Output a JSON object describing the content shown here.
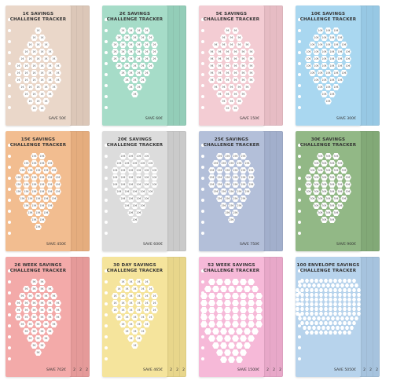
{
  "trackers": [
    {
      "title": "1€ SAVINGS",
      "subtitle": "CHALLENGE TRACKER",
      "unit": "1€",
      "save": "SAVE 50€",
      "color": "#ead7c9",
      "shade": "#dcc7b8",
      "rows": [
        1,
        2,
        3,
        4,
        5,
        6,
        6,
        6,
        5,
        4,
        3,
        2
      ],
      "tab": ""
    },
    {
      "title": "2€ SAVINGS",
      "subtitle": "CHALLENGE TRACKER",
      "unit": "2€",
      "save": "SAVE 60€",
      "color": "#a6dcc8",
      "shade": "#93cdb8",
      "rows": [
        4,
        5,
        6,
        6,
        6,
        5,
        4,
        3,
        2,
        1
      ],
      "tab": ""
    },
    {
      "title": "5€ SAVINGS",
      "subtitle": "CHALLENGE TRACKER",
      "unit": "5€",
      "save": "SAVE 150€",
      "color": "#f3ccd3",
      "shade": "#e6bcc4",
      "rows": [
        2,
        3,
        5,
        6,
        6,
        6,
        6,
        6,
        5,
        4,
        3,
        2
      ],
      "tab": ""
    },
    {
      "title": "10€ SAVINGS",
      "subtitle": "CHALLENGE TRACKER",
      "unit": "10€",
      "save": "SAVE 300€",
      "color": "#a9d7f0",
      "shade": "#97c8e4",
      "rows": [
        3,
        4,
        5,
        6,
        6,
        6,
        5,
        4,
        3,
        2,
        1
      ],
      "tab": ""
    },
    {
      "title": "15€ SAVINGS",
      "subtitle": "CHALLENGE TRACKER",
      "unit": "15€",
      "save": "SAVE 450€",
      "color": "#f2bd90",
      "shade": "#e5ad7e",
      "rows": [
        2,
        4,
        5,
        6,
        6,
        6,
        5,
        4,
        3,
        2,
        1
      ],
      "tab": ""
    },
    {
      "title": "20€ SAVINGS",
      "subtitle": "CHALLENGE TRACKER",
      "unit": "20€",
      "save": "SAVE 600€",
      "color": "#dcdcdc",
      "shade": "#cacaca",
      "rows": [
        4,
        5,
        6,
        6,
        6,
        5,
        4,
        3,
        2,
        1
      ],
      "tab": ""
    },
    {
      "title": "25€ SAVINGS",
      "subtitle": "CHALLENGE TRACKER",
      "unit": "25€",
      "save": "SAVE 750€",
      "color": "#b3bfd9",
      "shade": "#a2afcc",
      "rows": [
        4,
        5,
        6,
        6,
        6,
        5,
        4,
        3,
        2,
        1
      ],
      "tab": ""
    },
    {
      "title": "30€ SAVINGS",
      "subtitle": "CHALLENGE TRACKER",
      "unit": "30€",
      "save": "SAVE 900€",
      "color": "#92b886",
      "shade": "#82a977",
      "rows": [
        3,
        4,
        5,
        6,
        6,
        6,
        5,
        4,
        3,
        2
      ],
      "tab": ""
    },
    {
      "title": "26 WEEK SAVINGS",
      "subtitle": "CHALLENGE TRACKER",
      "unit": "5€",
      "save": "SAVE 702€",
      "color": "#f3aaa9",
      "shade": "#e59a99",
      "rows": [
        2,
        4,
        5,
        6,
        6,
        6,
        5,
        4,
        3,
        2,
        1
      ],
      "tab": "2"
    },
    {
      "title": "30 DAY SAVINGS",
      "subtitle": "CHALLENGE TRACKER",
      "unit": "1€",
      "save": "SAVE 465€",
      "color": "#f5e49c",
      "shade": "#e8d68b",
      "rows": [
        4,
        5,
        6,
        6,
        6,
        5,
        4,
        3,
        2,
        1
      ],
      "tab": "2"
    },
    {
      "title": "52 WEEK SAVINGS",
      "subtitle": "CHALLENGE TRACKER",
      "unit": "",
      "save": "SAVE 1500€",
      "color": "#f6b9d8",
      "shade": "#e8a8c9",
      "rows": [
        6,
        7,
        8,
        8,
        8,
        8,
        8,
        7,
        6,
        5,
        4,
        3
      ],
      "tab": "2"
    },
    {
      "title": "100 ENVELOPE SAVINGS",
      "subtitle": "CHALLENGE TRACKER",
      "unit": "",
      "save": "SAVE 5050€",
      "color": "#b7d3ec",
      "shade": "#a6c3de",
      "rows": [
        12,
        13,
        14,
        14,
        14,
        14,
        14,
        14,
        13,
        12,
        11,
        10
      ],
      "tab": "2"
    }
  ]
}
